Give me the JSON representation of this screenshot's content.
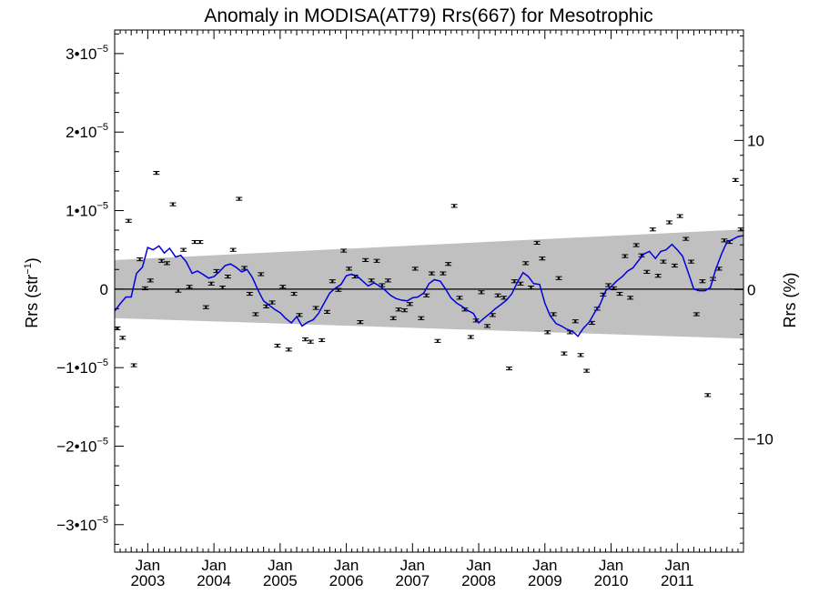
{
  "chart_data": {
    "type": "scatter",
    "title": "Anomaly in MODISA(AT79) Rrs(667) for Mesotrophic",
    "ylabel_left": {
      "base": "Rrs (str",
      "sup": "−1",
      "tail": ")"
    },
    "ylabel_right": "Rrs (%)",
    "xlim": [
      2002.5,
      2012.0
    ],
    "ylim_left": [
      -3.35,
      3.3
    ],
    "ylim_left_unit_multiplier": 1e-05,
    "ylim_right": [
      -17.6,
      17.4
    ],
    "x_tick_labels": [
      {
        "month": "Jan",
        "year": "2003",
        "x": 2003.0
      },
      {
        "month": "Jan",
        "year": "2004",
        "x": 2004.0
      },
      {
        "month": "Jan",
        "year": "2005",
        "x": 2005.0
      },
      {
        "month": "Jan",
        "year": "2006",
        "x": 2006.0
      },
      {
        "month": "Jan",
        "year": "2007",
        "x": 2007.0
      },
      {
        "month": "Jan",
        "year": "2008",
        "x": 2008.0
      },
      {
        "month": "Jan",
        "year": "2009",
        "x": 2009.0
      },
      {
        "month": "Jan",
        "year": "2010",
        "x": 2010.0
      },
      {
        "month": "Jan",
        "year": "2011",
        "x": 2011.0
      }
    ],
    "y_left_ticks": [
      {
        "value": 3,
        "mantissa": "3•10",
        "exp": "−5"
      },
      {
        "value": 2,
        "mantissa": "2•10",
        "exp": "−5"
      },
      {
        "value": 1,
        "mantissa": "1•10",
        "exp": "−5"
      },
      {
        "value": 0,
        "mantissa": "0",
        "exp": ""
      },
      {
        "value": -1,
        "mantissa": "−1•10",
        "exp": "−5"
      },
      {
        "value": -2,
        "mantissa": "−2•10",
        "exp": "−5"
      },
      {
        "value": -3,
        "mantissa": "−3•10",
        "exp": "−5"
      }
    ],
    "y_right_ticks": [
      {
        "value": 10,
        "label": "10"
      },
      {
        "value": 0,
        "label": "0"
      },
      {
        "value": -10,
        "label": "−10"
      }
    ],
    "uncertainty_band": {
      "color": "#c0c0c0",
      "x": [
        2002.5,
        2012.0
      ],
      "upper": [
        0.37,
        0.76
      ],
      "lower": [
        -0.37,
        -0.63
      ]
    },
    "zero_line": 0,
    "series": [
      {
        "kind": "monthly_anomaly",
        "color": "#000000",
        "x": [
          2002.54,
          2002.62,
          2002.71,
          2002.79,
          2002.88,
          2002.96,
          2003.04,
          2003.13,
          2003.21,
          2003.29,
          2003.38,
          2003.46,
          2003.54,
          2003.63,
          2003.71,
          2003.79,
          2003.88,
          2003.96,
          2004.04,
          2004.13,
          2004.21,
          2004.29,
          2004.38,
          2004.46,
          2004.54,
          2004.63,
          2004.71,
          2004.79,
          2004.88,
          2004.96,
          2005.04,
          2005.13,
          2005.21,
          2005.29,
          2005.38,
          2005.46,
          2005.54,
          2005.63,
          2005.71,
          2005.79,
          2005.88,
          2005.96,
          2006.04,
          2006.13,
          2006.21,
          2006.29,
          2006.38,
          2006.46,
          2006.54,
          2006.63,
          2006.71,
          2006.79,
          2006.88,
          2006.96,
          2007.04,
          2007.13,
          2007.21,
          2007.29,
          2007.38,
          2007.46,
          2007.54,
          2007.63,
          2007.71,
          2007.79,
          2007.88,
          2007.96,
          2008.04,
          2008.13,
          2008.21,
          2008.29,
          2008.38,
          2008.46,
          2008.54,
          2008.63,
          2008.71,
          2008.79,
          2008.88,
          2008.96,
          2009.04,
          2009.13,
          2009.21,
          2009.29,
          2009.38,
          2009.46,
          2009.54,
          2009.63,
          2009.71,
          2009.79,
          2009.88,
          2009.96,
          2010.04,
          2010.13,
          2010.21,
          2010.29,
          2010.38,
          2010.46,
          2010.54,
          2010.63,
          2010.71,
          2010.79,
          2010.88,
          2010.96,
          2011.04,
          2011.13,
          2011.21,
          2011.29,
          2011.38,
          2011.46,
          2011.54,
          2011.63,
          2011.71,
          2011.79,
          2011.88,
          2011.96
        ],
        "y": [
          -0.5,
          -0.62,
          0.87,
          -0.97,
          0.38,
          0.01,
          0.11,
          1.48,
          0.36,
          0.33,
          1.08,
          -0.02,
          0.5,
          0.03,
          0.6,
          0.6,
          -0.23,
          0.07,
          0.23,
          0.02,
          0.16,
          0.5,
          1.15,
          0.27,
          -0.06,
          -0.32,
          0.19,
          -0.22,
          -0.17,
          -0.72,
          0.03,
          -0.77,
          -0.06,
          -0.33,
          -0.64,
          -0.67,
          -0.24,
          -0.65,
          -0.29,
          0.1,
          -0.01,
          0.49,
          0.26,
          0.16,
          -0.42,
          0.37,
          0.11,
          0.36,
          0.05,
          0.11,
          -0.37,
          -0.26,
          -0.27,
          -0.19,
          0.26,
          -0.37,
          -0.08,
          0.2,
          -0.66,
          0.2,
          0.32,
          1.06,
          -0.11,
          -0.26,
          -0.61,
          -0.4,
          -0.04,
          -0.47,
          -0.33,
          -0.08,
          -0.11,
          -1.01,
          0.1,
          0.07,
          0.33,
          0.02,
          0.59,
          0.39,
          -0.55,
          -0.32,
          0.14,
          -0.82,
          -0.55,
          -0.41,
          -0.84,
          -1.04,
          -0.43,
          -0.25,
          -0.07,
          0.05,
          0.01,
          -0.06,
          0.42,
          -0.11,
          0.56,
          0.43,
          0.22,
          0.76,
          0.17,
          0.35,
          0.85,
          0.3,
          0.93,
          0.64,
          0.35,
          -0.32,
          0.1,
          -1.35,
          0.13,
          0.26,
          0.62,
          0.6,
          1.39,
          0.76
        ]
      },
      {
        "kind": "running_mean",
        "color": "#0000dd",
        "x": [
          2002.5,
          2002.58,
          2002.67,
          2002.75,
          2002.83,
          2002.92,
          2003.0,
          2003.08,
          2003.17,
          2003.25,
          2003.33,
          2003.42,
          2003.5,
          2003.58,
          2003.67,
          2003.75,
          2003.83,
          2003.92,
          2004.0,
          2004.08,
          2004.17,
          2004.25,
          2004.33,
          2004.42,
          2004.5,
          2004.58,
          2004.67,
          2004.75,
          2004.83,
          2004.92,
          2005.0,
          2005.08,
          2005.17,
          2005.25,
          2005.33,
          2005.42,
          2005.5,
          2005.58,
          2005.67,
          2005.75,
          2005.83,
          2005.92,
          2006.0,
          2006.08,
          2006.17,
          2006.25,
          2006.33,
          2006.42,
          2006.5,
          2006.58,
          2006.67,
          2006.75,
          2006.83,
          2006.92,
          2007.0,
          2007.08,
          2007.17,
          2007.25,
          2007.33,
          2007.42,
          2007.5,
          2007.58,
          2007.67,
          2007.75,
          2007.83,
          2007.92,
          2008.0,
          2008.08,
          2008.17,
          2008.25,
          2008.33,
          2008.42,
          2008.5,
          2008.58,
          2008.67,
          2008.75,
          2008.83,
          2008.92,
          2009.0,
          2009.08,
          2009.17,
          2009.25,
          2009.33,
          2009.42,
          2009.5,
          2009.58,
          2009.67,
          2009.75,
          2009.83,
          2009.92,
          2010.0,
          2010.08,
          2010.17,
          2010.25,
          2010.33,
          2010.42,
          2010.5,
          2010.58,
          2010.67,
          2010.75,
          2010.83,
          2010.92,
          2011.0,
          2011.08,
          2011.17,
          2011.25,
          2011.33,
          2011.42,
          2011.5,
          2011.58,
          2011.67,
          2011.75,
          2011.83,
          2011.92,
          2012.0
        ],
        "y": [
          -0.28,
          -0.19,
          -0.1,
          -0.1,
          0.2,
          0.28,
          0.53,
          0.5,
          0.55,
          0.46,
          0.52,
          0.41,
          0.43,
          0.35,
          0.2,
          0.23,
          0.19,
          0.14,
          0.16,
          0.22,
          0.3,
          0.32,
          0.28,
          0.22,
          0.25,
          0.15,
          -0.02,
          -0.15,
          -0.2,
          -0.26,
          -0.3,
          -0.37,
          -0.43,
          -0.35,
          -0.47,
          -0.42,
          -0.39,
          -0.31,
          -0.17,
          -0.05,
          0.01,
          0.06,
          0.17,
          0.19,
          0.16,
          0.1,
          0.04,
          0.08,
          0.04,
          -0.01,
          -0.08,
          -0.12,
          -0.14,
          -0.15,
          -0.11,
          -0.1,
          -0.05,
          0.07,
          0.12,
          0.1,
          0.0,
          -0.11,
          -0.18,
          -0.22,
          -0.27,
          -0.31,
          -0.43,
          -0.37,
          -0.31,
          -0.25,
          -0.2,
          -0.14,
          -0.06,
          0.08,
          0.21,
          0.16,
          0.07,
          0.06,
          -0.18,
          -0.34,
          -0.44,
          -0.47,
          -0.51,
          -0.54,
          -0.6,
          -0.5,
          -0.42,
          -0.3,
          -0.2,
          -0.02,
          0.03,
          0.1,
          0.16,
          0.23,
          0.27,
          0.37,
          0.45,
          0.48,
          0.39,
          0.48,
          0.5,
          0.57,
          0.5,
          0.42,
          0.2,
          0.0,
          -0.02,
          -0.02,
          0.02,
          0.25,
          0.45,
          0.6,
          0.63,
          0.67,
          0.68
        ]
      }
    ]
  }
}
